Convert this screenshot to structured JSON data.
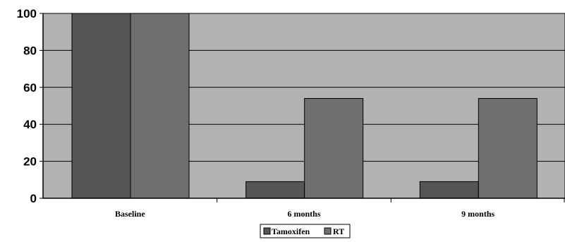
{
  "chart_data": {
    "type": "bar",
    "title": "",
    "xlabel": "",
    "ylabel": "",
    "categories": [
      "Baseline",
      "6 months",
      "9 months"
    ],
    "series": [
      {
        "name": "Tamoxifen",
        "values": [
          100,
          9,
          9
        ],
        "color": "#555555"
      },
      {
        "name": "RT",
        "values": [
          100,
          54,
          54
        ],
        "color": "#6f6f6f"
      }
    ],
    "ylim": [
      0,
      100
    ],
    "yticks": [
      "0",
      "20",
      "40",
      "60",
      "80",
      "100"
    ],
    "plot_background": "#b2b2b2",
    "grid": true,
    "legend_position": "bottom-center"
  }
}
